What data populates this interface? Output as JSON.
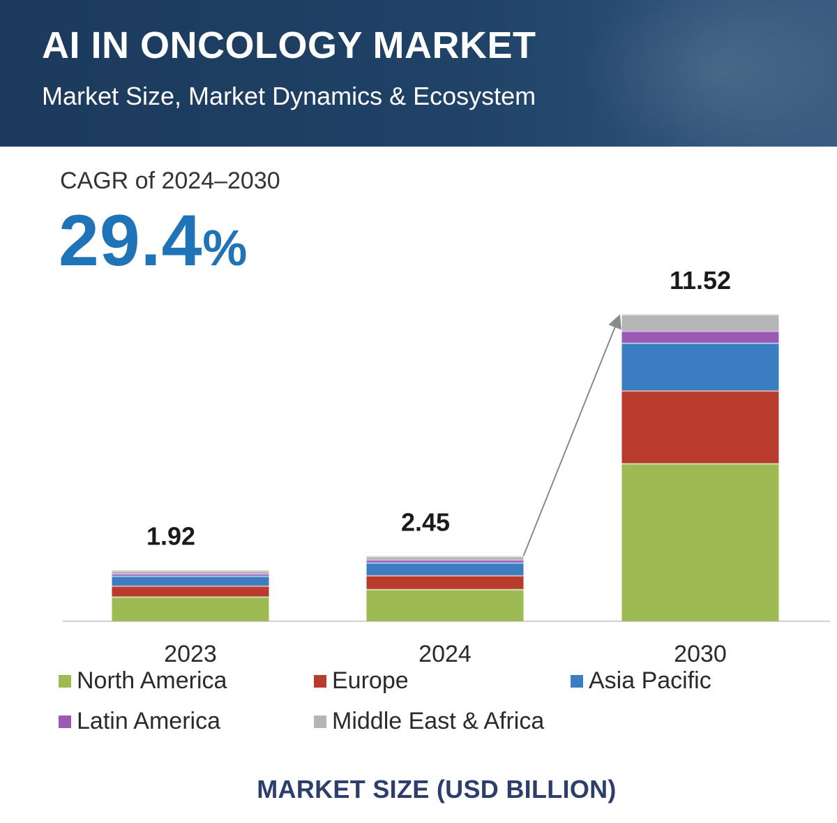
{
  "header": {
    "title": "AI IN ONCOLOGY MARKET",
    "subtitle": "Market Size, Market Dynamics & Ecosystem"
  },
  "cagr": {
    "label": "CAGR of 2024–2030",
    "value": "29.4",
    "unit": "%"
  },
  "chart_data": {
    "type": "bar",
    "stacked": true,
    "categories": [
      "2023",
      "2024",
      "2030"
    ],
    "totals": [
      "1.92",
      "2.45",
      "11.52"
    ],
    "series": [
      {
        "name": "North America",
        "color": "#9dbb52",
        "values": [
          0.93,
          1.21,
          5.93
        ]
      },
      {
        "name": "Europe",
        "color": "#b83b2e",
        "values": [
          0.41,
          0.52,
          2.73
        ]
      },
      {
        "name": "Asia Pacific",
        "color": "#3b7dc1",
        "values": [
          0.37,
          0.48,
          1.79
        ]
      },
      {
        "name": "Latin America",
        "color": "#9b59b6",
        "values": [
          0.09,
          0.11,
          0.45
        ]
      },
      {
        "name": "Middle East & Africa",
        "color": "#b5b5b5",
        "values": [
          0.12,
          0.13,
          0.62
        ]
      }
    ],
    "xlabel": "MARKET SIZE (USD BILLION)",
    "ylabel": "",
    "ylim": [
      0,
      11.52
    ],
    "grid": false,
    "legend_position": "bottom"
  }
}
